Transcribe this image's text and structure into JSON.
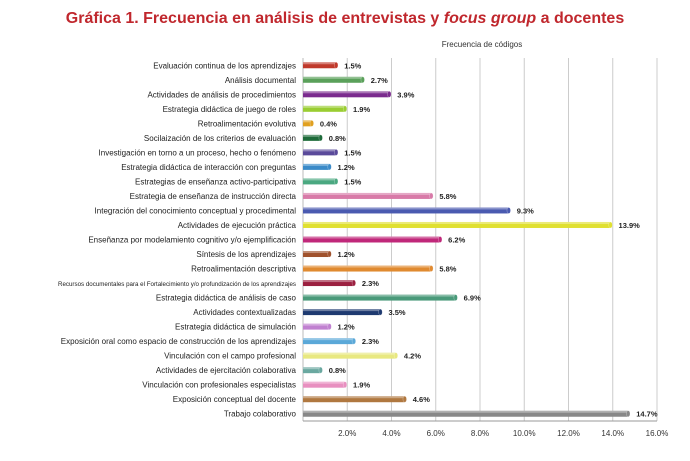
{
  "title": {
    "part1": "Gráfica 1. Frecuencia en análisis de entrevistas y ",
    "part2": "focus group",
    "part3": " a docentes",
    "color": "#c0272d"
  },
  "chart_data": {
    "type": "bar",
    "orientation": "horizontal",
    "series_label": "Frecuencia de códigos",
    "categories": [
      "Evaluación continua de los aprendizajes",
      "Análisis documental",
      "Actividades de análisis de procedimientos",
      "Estrategia didáctica de juego de roles",
      "Retroalimentación evolutiva",
      "Socilaización de los criterios de evaluación",
      "Investigación en torno a un proceso, hecho o fenómeno",
      "Estrategia didáctica de interacción con preguntas",
      "Estrategias de enseñanza activo-participativa",
      "Estrategia de enseñanza de instrucción directa",
      "Integración del conocimiento conceptual y procedimental",
      "Actividades de ejecución práctica",
      "Enseñanza por modelamiento cognitivo y/o ejemplificación",
      "Síntesis de los aprendizajes",
      "Retroalimentación descriptiva",
      "Recursos documentales para el Fortalecimiento y/o profundización de los aprendizajes",
      "Estrategia didáctica de análisis de caso",
      "Actividades contextualizadas",
      "Estrategia didáctica de simulación",
      "Exposición oral como espacio de construcción de los aprendizajes",
      "Vinculación con el campo profesional",
      "Actividades de ejercitación colaborativa",
      "Vinculación con profesionales especialistas",
      "Exposición conceptual del docente",
      "Trabajo colaborativo"
    ],
    "values": [
      1.5,
      2.7,
      3.9,
      1.9,
      0.4,
      0.8,
      1.5,
      1.2,
      1.5,
      5.8,
      9.3,
      13.9,
      6.2,
      1.2,
      5.8,
      2.3,
      6.9,
      3.5,
      1.2,
      2.3,
      4.2,
      0.8,
      1.9,
      4.6,
      14.7
    ],
    "value_labels": [
      "1.5%",
      "2.7%",
      "3.9%",
      "1.9%",
      "0.4%",
      "0.8%",
      "1.5%",
      "1.2%",
      "1.5%",
      "5.8%",
      "9.3%",
      "13.9%",
      "6.2%",
      "1.2%",
      "5.8%",
      "2.3%",
      "6.9%",
      "3.5%",
      "1.2%",
      "2.3%",
      "4.2%",
      "0.8%",
      "1.9%",
      "4.6%",
      "14.7%"
    ],
    "colors": [
      "#c0392b",
      "#5aa05a",
      "#7b2b8e",
      "#9acd32",
      "#e0a020",
      "#1e6b3a",
      "#5a4a9a",
      "#3a8ac8",
      "#4aa880",
      "#d87aa8",
      "#4a5ab0",
      "#e0e030",
      "#c0287a",
      "#a0522d",
      "#e08a30",
      "#9b2040",
      "#4a9a7a",
      "#1e3a70",
      "#c080d0",
      "#5aa8d8",
      "#e8e880",
      "#6aa8a0",
      "#e890c0",
      "#b07840",
      "#888888"
    ],
    "x_ticks": [
      "2.0%",
      "4.0%",
      "6.0%",
      "8.0%",
      "10.0%",
      "12.0%",
      "14.0%",
      "16.0%"
    ],
    "xlim": [
      0,
      16
    ],
    "grid": true
  }
}
